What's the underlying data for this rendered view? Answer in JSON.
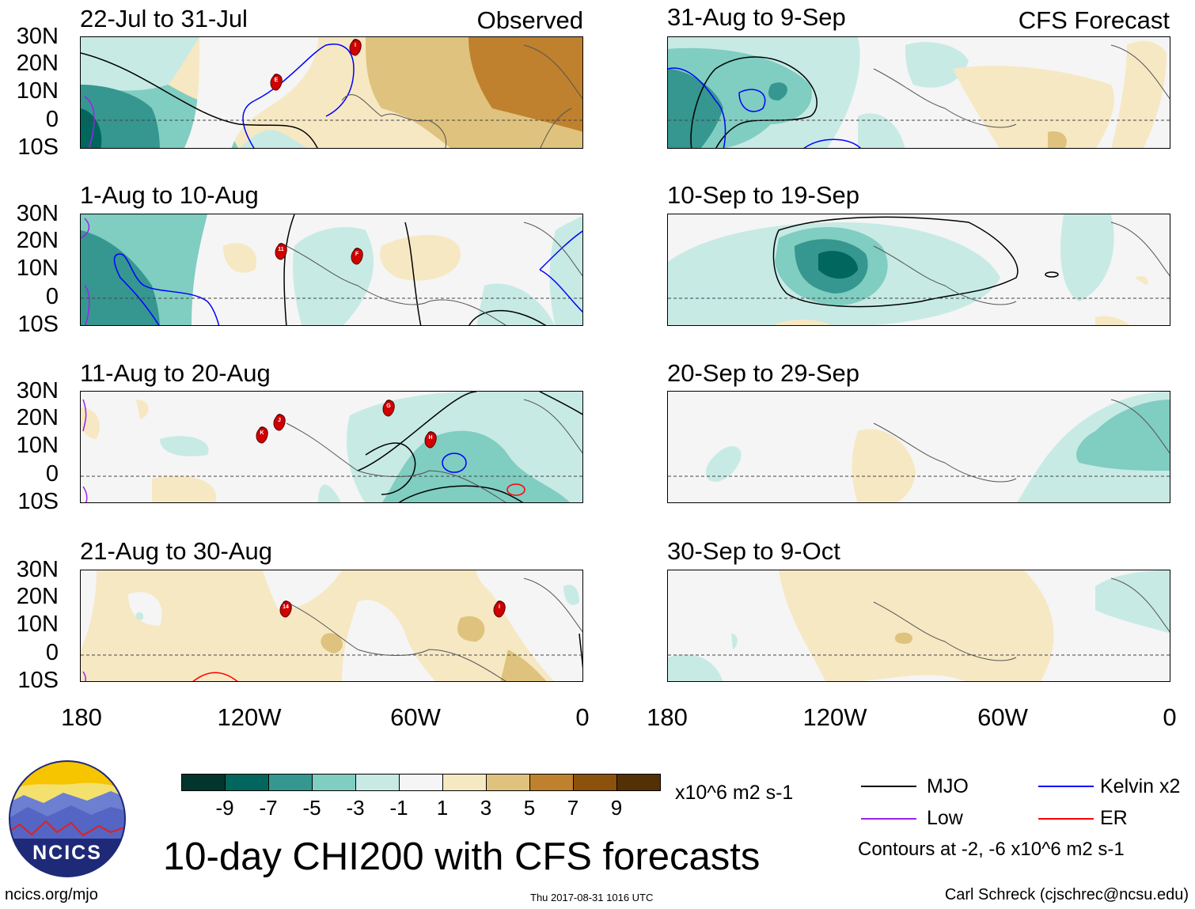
{
  "header": {
    "left_corner": "Observed",
    "right_corner": "CFS Forecast"
  },
  "panels_left": [
    {
      "title": "22-Jul to 31-Jul"
    },
    {
      "title": "1-Aug to 10-Aug"
    },
    {
      "title": "11-Aug to 20-Aug"
    },
    {
      "title": "21-Aug to 30-Aug"
    }
  ],
  "panels_right": [
    {
      "title": "31-Aug to 9-Sep"
    },
    {
      "title": "10-Sep to 19-Sep"
    },
    {
      "title": "20-Sep to 29-Sep"
    },
    {
      "title": "30-Sep to 9-Oct"
    }
  ],
  "lat_labels": [
    "30N",
    "20N",
    "10N",
    "0",
    "10S"
  ],
  "lon_labels": [
    "180",
    "120W",
    "60W",
    "0"
  ],
  "storm_markers": [
    {
      "panel": "left-0",
      "label": "E"
    },
    {
      "panel": "left-0",
      "label": "I"
    },
    {
      "panel": "left-1",
      "label": "11"
    },
    {
      "panel": "left-1",
      "label": "F"
    },
    {
      "panel": "left-2",
      "label": "G"
    },
    {
      "panel": "left-2",
      "label": "J"
    },
    {
      "panel": "left-2",
      "label": "K"
    },
    {
      "panel": "left-2",
      "label": "H"
    },
    {
      "panel": "left-3",
      "label": "14"
    },
    {
      "panel": "left-3",
      "label": "I"
    }
  ],
  "colorbar": {
    "labels": [
      "-9",
      "-7",
      "-5",
      "-3",
      "-1",
      "1",
      "3",
      "5",
      "7",
      "9"
    ],
    "units": "x10^6 m2 s-1",
    "colors": [
      "#01352e",
      "#01665e",
      "#35978f",
      "#80cdc1",
      "#c7eae5",
      "#f5f5f5",
      "#f6e8c3",
      "#dfc27d",
      "#bf812d",
      "#8c510a",
      "#543005"
    ]
  },
  "legend": {
    "items": [
      {
        "name": "MJO",
        "color": "#000000"
      },
      {
        "name": "Kelvin x2",
        "color": "#0000ff"
      },
      {
        "name": "Low",
        "color": "#a020f0"
      },
      {
        "name": "ER",
        "color": "#ff0000"
      }
    ],
    "contour_note": "Contours at -2, -6 x10^6 m2 s-1"
  },
  "main_title": "10-day CHI200 with CFS forecasts",
  "logo_text": "NCICS",
  "footer": {
    "website": "ncics.org/mjo",
    "timestamp": "Thu 2017-08-31 1016 UTC",
    "author": "Carl Schreck (cjschrec@ncsu.edu)"
  }
}
